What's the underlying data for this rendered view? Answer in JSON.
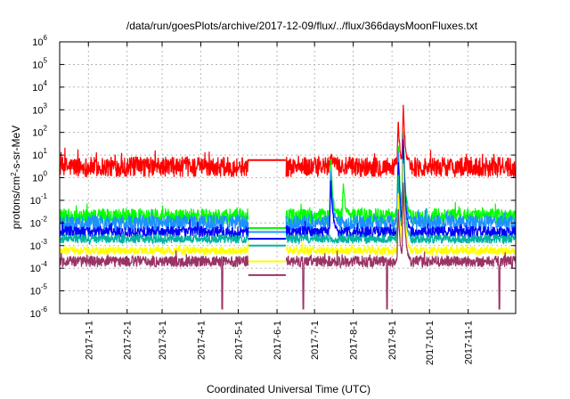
{
  "chart_data": {
    "type": "line",
    "title": "/data/run/goesPlots/archive/2017-12-09/flux/../flux/366daysMoonFluxes.txt",
    "xlabel": "Coordinated Universal Time (UTC)",
    "ylabel": {
      "base": "protons/cm",
      "sup": "2",
      "rest": "-s-sr-MeV"
    },
    "yscale": "log",
    "ylim": [
      1e-06,
      1000000.0
    ],
    "xlim": [
      "2016-12-09",
      "2017-12-09"
    ],
    "grid": true,
    "x_ticks": [
      "2017-1-1",
      "2017-2-1",
      "2017-3-1",
      "2017-4-1",
      "2017-5-1",
      "2017-6-1",
      "2017-7-1",
      "2017-8-1",
      "2017-9-1",
      "2017-10-1",
      "2017-11-1"
    ],
    "y_ticks": [
      {
        "value": 1e-06,
        "base": "10",
        "exp": "-6"
      },
      {
        "value": 1e-05,
        "base": "10",
        "exp": "-5"
      },
      {
        "value": 0.0001,
        "base": "10",
        "exp": "-4"
      },
      {
        "value": 0.001,
        "base": "10",
        "exp": "-3"
      },
      {
        "value": 0.01,
        "base": "10",
        "exp": "-2"
      },
      {
        "value": 0.1,
        "base": "10",
        "exp": "-1"
      },
      {
        "value": 1.0,
        "base": "10",
        "exp": "0"
      },
      {
        "value": 10.0,
        "base": "10",
        "exp": "1"
      },
      {
        "value": 100.0,
        "base": "10",
        "exp": "2"
      },
      {
        "value": 1000.0,
        "base": "10",
        "exp": "3"
      },
      {
        "value": 10000.0,
        "base": "10",
        "exp": "4"
      },
      {
        "value": 100000.0,
        "base": "10",
        "exp": "5"
      },
      {
        "value": 1000000.0,
        "base": "10",
        "exp": "6"
      }
    ],
    "data_gap": [
      "2017-05-09",
      "2017-06-08"
    ],
    "series": [
      {
        "id": "red",
        "color": "#ff0000",
        "baseline": 3,
        "spread": 0.45,
        "gap_value": 6,
        "events": [
          {
            "date": "2017-07-14",
            "value": 12
          },
          {
            "date": "2017-09-06",
            "value": 300
          },
          {
            "date": "2017-09-10",
            "value": 2000
          }
        ]
      },
      {
        "id": "green",
        "color": "#00ff00",
        "baseline": 0.02,
        "spread": 0.35,
        "gap_value": 0.006,
        "events": [
          {
            "date": "2017-07-14",
            "value": 10
          },
          {
            "date": "2017-07-24",
            "value": 0.5
          },
          {
            "date": "2017-09-06",
            "value": 50
          },
          {
            "date": "2017-09-10",
            "value": 200
          }
        ]
      },
      {
        "id": "blue-light",
        "color": "#1e90ff",
        "baseline": 0.01,
        "spread": 0.35,
        "gap_value": 0.004,
        "events": [
          {
            "date": "2017-07-14",
            "value": 3
          },
          {
            "date": "2017-09-06",
            "value": 20
          },
          {
            "date": "2017-09-10",
            "value": 100
          }
        ]
      },
      {
        "id": "blue",
        "color": "#0000ff",
        "baseline": 0.004,
        "spread": 0.25,
        "gap_value": 0.002,
        "events": [
          {
            "date": "2017-07-14",
            "value": 1
          },
          {
            "date": "2017-09-06",
            "value": 10
          },
          {
            "date": "2017-09-10",
            "value": 80
          }
        ]
      },
      {
        "id": "teal",
        "color": "#00b3a0",
        "baseline": 0.002,
        "spread": 0.2,
        "gap_value": 0.001,
        "events": [
          {
            "date": "2017-09-06",
            "value": 2
          },
          {
            "date": "2017-09-10",
            "value": 10
          }
        ]
      },
      {
        "id": "yellow",
        "color": "#ffff00",
        "baseline": 0.0006,
        "spread": 0.18,
        "gap_value": 0.0002,
        "events": [
          {
            "date": "2017-09-06",
            "value": 0.3
          },
          {
            "date": "2017-09-10",
            "value": 5
          }
        ]
      },
      {
        "id": "maroon",
        "color": "#993366",
        "baseline": 0.0002,
        "spread": 0.25,
        "gap_value": 5e-05,
        "events": [
          {
            "date": "2017-09-06",
            "value": 0.05
          },
          {
            "date": "2017-09-10",
            "value": 1
          }
        ],
        "dips": [
          "2017-04-18",
          "2017-06-22",
          "2017-08-28",
          "2017-11-26"
        ]
      }
    ]
  }
}
